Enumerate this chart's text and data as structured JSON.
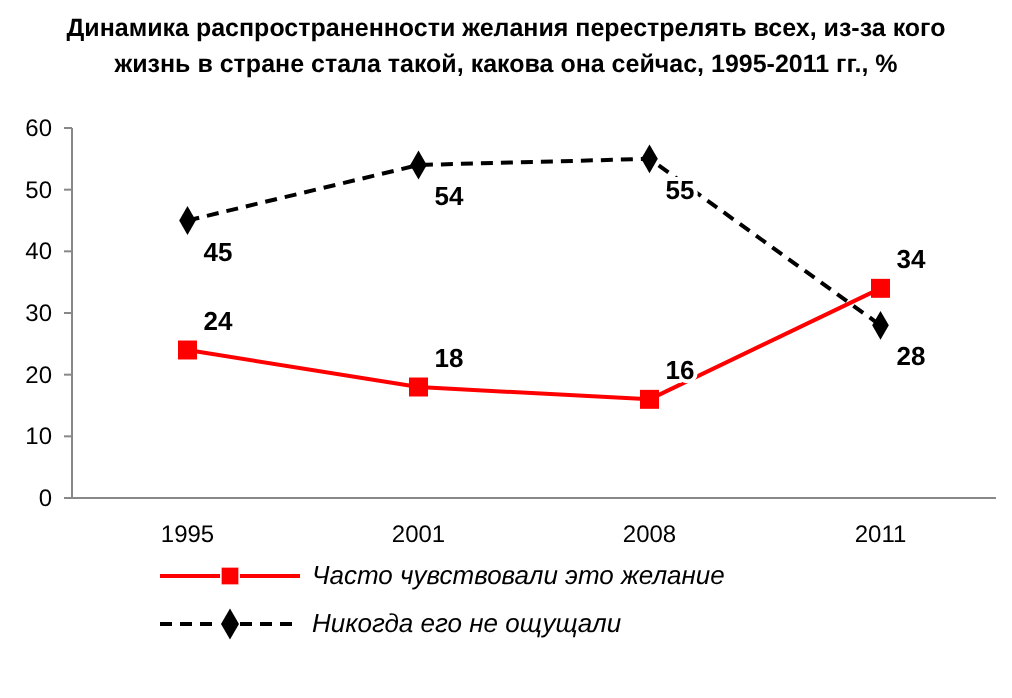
{
  "chart_data": {
    "type": "line",
    "title": "Динамика распространенности желания перестрелять всех, из-за кого жизнь в стране стала такой, какова она сейчас, 1995-2011 гг., %",
    "categories": [
      "1995",
      "2001",
      "2008",
      "2011"
    ],
    "series": [
      {
        "name": "Часто чувствовали это желание",
        "color": "#ff0000",
        "values": [
          24,
          18,
          16,
          34
        ],
        "marker": "square",
        "line_style": "solid"
      },
      {
        "name": "Никогда его не ощущали",
        "color": "#000000",
        "values": [
          45,
          54,
          55,
          28
        ],
        "marker": "diamond",
        "line_style": "dashed"
      }
    ],
    "ylim": [
      0,
      60
    ],
    "yticks": [
      0,
      10,
      20,
      30,
      40,
      50,
      60
    ],
    "grid": false,
    "legend": "bottom",
    "data_labels": true
  }
}
